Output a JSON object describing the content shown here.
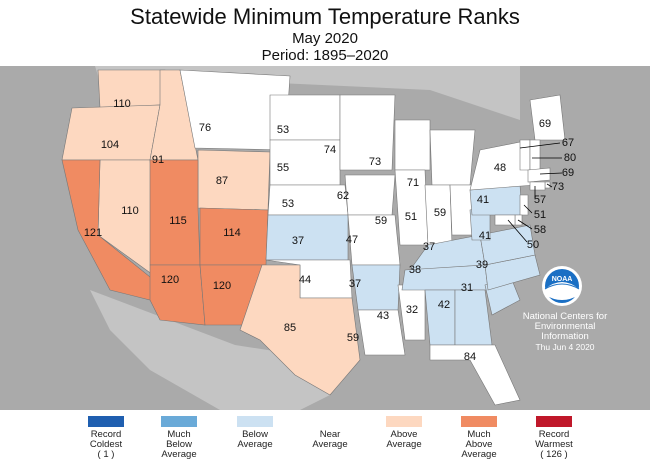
{
  "title": "Statewide Minimum Temperature Ranks",
  "subtitle_month": "May 2020",
  "subtitle_period": "Period: 1895–2020",
  "colors": {
    "record_coldest": "#1f5fb0",
    "much_below": "#6aaad8",
    "below": "#cce1f2",
    "near": "#ffffff",
    "above": "#fdd8c0",
    "much_above": "#f08b62",
    "record_warmest": "#c0182a",
    "background": "#aaaaaa",
    "state_border": "#777777"
  },
  "legend": [
    {
      "label": "Record",
      "label2": "Coldest",
      "count": "( 1 )",
      "color_key": "record_coldest"
    },
    {
      "label": "Much",
      "label2": "Below",
      "label3": "Average",
      "color_key": "much_below"
    },
    {
      "label": "Below",
      "label2": "Average",
      "color_key": "below"
    },
    {
      "label": "Near",
      "label2": "Average",
      "color_key": "near"
    },
    {
      "label": "Above",
      "label2": "Average",
      "color_key": "above"
    },
    {
      "label": "Much",
      "label2": "Above",
      "label3": "Average",
      "color_key": "much_above"
    },
    {
      "label": "Record",
      "label2": "Warmest",
      "count": "( 126 )",
      "color_key": "record_warmest"
    }
  ],
  "states": [
    {
      "state": "WA",
      "rank": "110",
      "category": "above"
    },
    {
      "state": "OR",
      "rank": "104",
      "category": "above"
    },
    {
      "state": "ID",
      "rank": "91",
      "category": "above"
    },
    {
      "state": "MT",
      "rank": "76",
      "category": "near"
    },
    {
      "state": "WY",
      "rank": "87",
      "category": "above"
    },
    {
      "state": "NV",
      "rank": "110",
      "category": "above"
    },
    {
      "state": "CA",
      "rank": "121",
      "category": "much_above"
    },
    {
      "state": "UT",
      "rank": "115",
      "category": "much_above"
    },
    {
      "state": "CO",
      "rank": "114",
      "category": "much_above"
    },
    {
      "state": "AZ",
      "rank": "120",
      "category": "much_above"
    },
    {
      "state": "NM",
      "rank": "120",
      "category": "much_above"
    },
    {
      "state": "ND",
      "rank": "53",
      "category": "near"
    },
    {
      "state": "SD",
      "rank": "55",
      "category": "near"
    },
    {
      "state": "NE",
      "rank": "53",
      "category": "near"
    },
    {
      "state": "KS",
      "rank": "37",
      "category": "below"
    },
    {
      "state": "OK",
      "rank": "44",
      "category": "near"
    },
    {
      "state": "TX",
      "rank": "85",
      "category": "above"
    },
    {
      "state": "MN",
      "rank": "74",
      "category": "near"
    },
    {
      "state": "IA",
      "rank": "62",
      "category": "near"
    },
    {
      "state": "MO",
      "rank": "47",
      "category": "near"
    },
    {
      "state": "AR",
      "rank": "37",
      "category": "below"
    },
    {
      "state": "LA",
      "rank": "59",
      "category": "near"
    },
    {
      "state": "WI",
      "rank": "73",
      "category": "near"
    },
    {
      "state": "IL",
      "rank": "59",
      "category": "near"
    },
    {
      "state": "MS",
      "rank": "43",
      "category": "near"
    },
    {
      "state": "MI",
      "rank": "71",
      "category": "near"
    },
    {
      "state": "IN",
      "rank": "51",
      "category": "near"
    },
    {
      "state": "OH",
      "rank": "59",
      "category": "near"
    },
    {
      "state": "KY",
      "rank": "37",
      "category": "below"
    },
    {
      "state": "TN",
      "rank": "38",
      "category": "below"
    },
    {
      "state": "AL",
      "rank": "32",
      "category": "below"
    },
    {
      "state": "GA",
      "rank": "42",
      "category": "below"
    },
    {
      "state": "FL",
      "rank": "84",
      "category": "near"
    },
    {
      "state": "SC",
      "rank": "31",
      "category": "below"
    },
    {
      "state": "NC",
      "rank": "39",
      "category": "below"
    },
    {
      "state": "VA",
      "rank": "41",
      "category": "below"
    },
    {
      "state": "WV",
      "rank": "",
      "category": "below"
    },
    {
      "state": "PA",
      "rank": "41",
      "category": "below"
    },
    {
      "state": "NY",
      "rank": "48",
      "category": "near"
    },
    {
      "state": "ME",
      "rank": "69",
      "category": "near"
    },
    {
      "state": "VT",
      "rank": "67",
      "category": "near"
    },
    {
      "state": "NH",
      "rank": "80",
      "category": "near"
    },
    {
      "state": "MA",
      "rank": "69",
      "category": "near"
    },
    {
      "state": "RI",
      "rank": "73",
      "category": "near"
    },
    {
      "state": "CT",
      "rank": "57",
      "category": "near"
    },
    {
      "state": "NJ",
      "rank": "51",
      "category": "near"
    },
    {
      "state": "DE",
      "rank": "58",
      "category": "near"
    },
    {
      "state": "MD",
      "rank": "50",
      "category": "near"
    }
  ],
  "ncei_text": [
    "National Centers for",
    "Environmental",
    "Information"
  ],
  "ncei_date": "Thu Jun  4 2020",
  "logo_text": "NOAA"
}
